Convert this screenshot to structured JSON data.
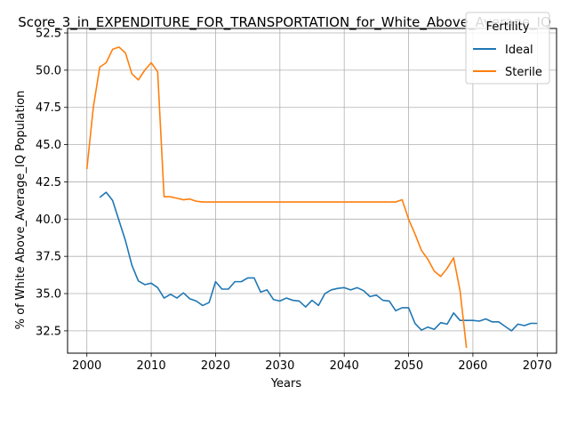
{
  "chart_data": {
    "type": "line",
    "title": "Score_3_in_EXPENDITURE_FOR_TRANSPORTATION_for_White_Above_Average_IQ",
    "xlabel": "Years",
    "ylabel": "% of White Above_Average_IQ Population",
    "xlim": [
      1997,
      2073
    ],
    "ylim": [
      31.0,
      52.8
    ],
    "xticks": [
      2000,
      2010,
      2020,
      2030,
      2040,
      2050,
      2060,
      2070
    ],
    "yticks": [
      32.5,
      35.0,
      37.5,
      40.0,
      42.5,
      45.0,
      47.5,
      50.0,
      52.5
    ],
    "ytick_labels": [
      "32.5",
      "35.0",
      "37.5",
      "40.0",
      "42.5",
      "45.0",
      "47.5",
      "50.0",
      "52.5"
    ],
    "grid": true,
    "legend": {
      "title": "Fertility",
      "position": "top-right"
    },
    "series": [
      {
        "name": "Ideal",
        "color": "#1f77b4",
        "x": [
          2002,
          2003,
          2004,
          2005,
          2006,
          2007,
          2008,
          2009,
          2010,
          2011,
          2012,
          2013,
          2014,
          2015,
          2016,
          2017,
          2018,
          2019,
          2020,
          2021,
          2022,
          2023,
          2024,
          2025,
          2026,
          2027,
          2028,
          2029,
          2030,
          2031,
          2032,
          2033,
          2034,
          2035,
          2036,
          2037,
          2038,
          2039,
          2040,
          2041,
          2042,
          2043,
          2044,
          2045,
          2046,
          2047,
          2048,
          2049,
          2050,
          2051,
          2052,
          2053,
          2054,
          2055,
          2056,
          2057,
          2058,
          2059,
          2060,
          2061,
          2062,
          2063,
          2064,
          2065,
          2066,
          2067,
          2068,
          2069,
          2070
        ],
        "values": [
          41.45,
          41.8,
          41.25,
          39.9,
          38.55,
          36.9,
          35.85,
          35.6,
          35.7,
          35.4,
          34.7,
          34.95,
          34.7,
          35.05,
          34.65,
          34.5,
          34.2,
          34.4,
          35.8,
          35.3,
          35.3,
          35.8,
          35.8,
          36.05,
          36.05,
          35.1,
          35.25,
          34.6,
          34.5,
          34.7,
          34.55,
          34.5,
          34.1,
          34.55,
          34.2,
          35.0,
          35.25,
          35.35,
          35.4,
          35.25,
          35.4,
          35.2,
          34.8,
          34.9,
          34.55,
          34.5,
          33.85,
          34.05,
          34.05,
          33.0,
          32.55,
          32.75,
          32.6,
          33.05,
          32.95,
          33.7,
          33.2,
          33.2,
          33.2,
          33.15,
          33.3,
          33.1,
          33.1,
          32.8,
          32.5,
          32.95,
          32.85,
          33.0,
          33.0
        ]
      },
      {
        "name": "Sterile",
        "color": "#ff7f0e",
        "x": [
          2000,
          2001,
          2002,
          2003,
          2004,
          2005,
          2006,
          2007,
          2008,
          2009,
          2010,
          2011,
          2012,
          2013,
          2014,
          2015,
          2016,
          2017,
          2018,
          2019,
          2020,
          2021,
          2022,
          2023,
          2024,
          2025,
          2026,
          2027,
          2028,
          2029,
          2030,
          2031,
          2032,
          2033,
          2034,
          2035,
          2036,
          2037,
          2038,
          2039,
          2040,
          2041,
          2042,
          2043,
          2044,
          2045,
          2046,
          2047,
          2048,
          2049,
          2050,
          2051,
          2052,
          2053,
          2054,
          2055,
          2056,
          2057,
          2058,
          2059
        ],
        "values": [
          43.35,
          47.5,
          50.2,
          50.5,
          51.4,
          51.55,
          51.15,
          49.75,
          49.35,
          50.0,
          50.5,
          49.9,
          41.5,
          41.5,
          41.4,
          41.3,
          41.35,
          41.2,
          41.15,
          41.15,
          41.15,
          41.15,
          41.15,
          41.15,
          41.15,
          41.15,
          41.15,
          41.15,
          41.15,
          41.15,
          41.15,
          41.15,
          41.15,
          41.15,
          41.15,
          41.15,
          41.15,
          41.15,
          41.15,
          41.15,
          41.15,
          41.15,
          41.15,
          41.15,
          41.15,
          41.15,
          41.15,
          41.15,
          41.15,
          41.3,
          40.0,
          39.0,
          37.9,
          37.3,
          36.5,
          36.15,
          36.7,
          37.4,
          35.2,
          31.35
        ]
      }
    ]
  }
}
